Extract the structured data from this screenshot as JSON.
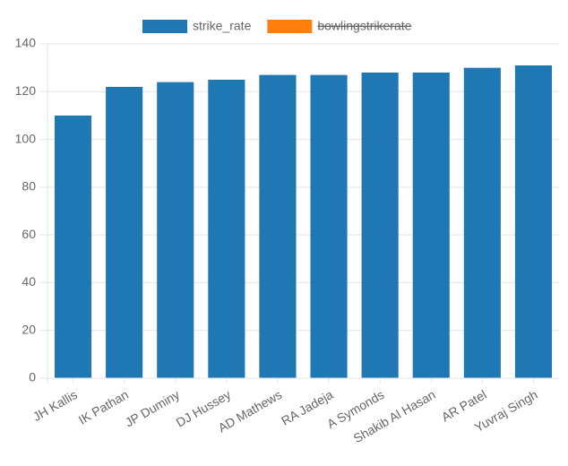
{
  "chart_data": {
    "type": "bar",
    "categories": [
      "JH Kallis",
      "IK Pathan",
      "JP Duminy",
      "DJ Hussey",
      "AD Mathews",
      "RA Jadeja",
      "A Symonds",
      "Shakib Al Hasan",
      "AR Patel",
      "Yuvraj Singh"
    ],
    "series": [
      {
        "name": "strike_rate",
        "color": "#1f77b4",
        "values": [
          110,
          122,
          124,
          125,
          127,
          127,
          128,
          128,
          130,
          131
        ]
      },
      {
        "name": "bowlingstrikerate",
        "color": "#ff7f0e",
        "hidden": true,
        "values": [
          null,
          null,
          null,
          null,
          null,
          null,
          null,
          null,
          null,
          null
        ]
      }
    ],
    "ylim": [
      0,
      140
    ],
    "yticks": [
      0,
      20,
      40,
      60,
      80,
      100,
      120,
      140
    ],
    "grid": true,
    "legend": "top"
  }
}
